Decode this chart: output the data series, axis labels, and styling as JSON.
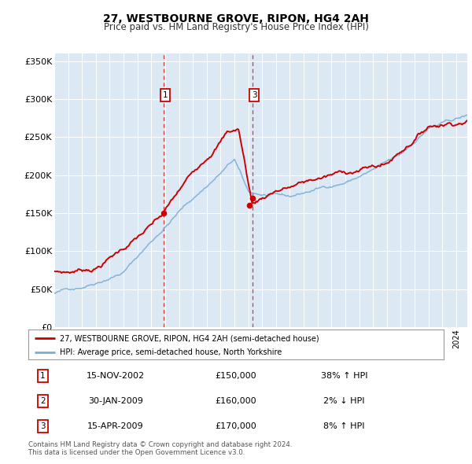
{
  "title": "27, WESTBOURNE GROVE, RIPON, HG4 2AH",
  "subtitle": "Price paid vs. HM Land Registry's House Price Index (HPI)",
  "red_label": "27, WESTBOURNE GROVE, RIPON, HG4 2AH (semi-detached house)",
  "blue_label": "HPI: Average price, semi-detached house, North Yorkshire",
  "red_color": "#cc0000",
  "blue_color": "#7aadd4",
  "plot_bg": "#dce9f5",
  "ylim": [
    0,
    360000
  ],
  "yticks": [
    0,
    50000,
    100000,
    150000,
    200000,
    250000,
    300000,
    350000
  ],
  "ytick_labels": [
    "£0",
    "£50K",
    "£100K",
    "£150K",
    "£200K",
    "£250K",
    "£300K",
    "£350K"
  ],
  "xmin": 1995.0,
  "xmax": 2024.8,
  "sale_1_x": 2002.87,
  "sale_1_y": 150000,
  "sale_2_x": 2009.08,
  "sale_2_y": 160000,
  "sale_3_x": 2009.29,
  "sale_3_y": 170000,
  "table_rows": [
    {
      "num": "1",
      "date": "15-NOV-2002",
      "price": "£150,000",
      "hpi": "38% ↑ HPI"
    },
    {
      "num": "2",
      "date": "30-JAN-2009",
      "price": "£160,000",
      "hpi": "2% ↓ HPI"
    },
    {
      "num": "3",
      "date": "15-APR-2009",
      "price": "£170,000",
      "hpi": "8% ↑ HPI"
    }
  ],
  "footer": "Contains HM Land Registry data © Crown copyright and database right 2024.\nThis data is licensed under the Open Government Licence v3.0."
}
